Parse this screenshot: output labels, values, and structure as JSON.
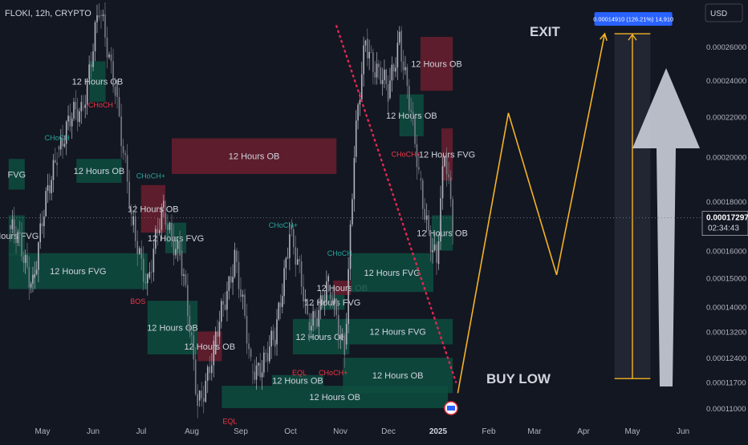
{
  "symbol_header": "FLOKI, 12h, CRYPTO",
  "currency": "USD",
  "colors": {
    "background": "#131722",
    "bull_zone": "#0e4d40",
    "bear_zone": "#6b1f2e",
    "candle_up": "#b2b5be",
    "candle_down": "#787b86",
    "projection": "#f5b324",
    "arrow": "#c7cbd6",
    "trendline": "#e0284f",
    "label_green": "#26a69a",
    "label_red": "#f23645",
    "price_tag": "#2962ff"
  },
  "chart_data": {
    "type": "candlestick",
    "timeframe": "12h",
    "x_axis": [
      "May",
      "Jun",
      "Jul",
      "Aug",
      "Sep",
      "Oct",
      "Nov",
      "Dec",
      "2025",
      "Feb",
      "Mar",
      "Apr",
      "May",
      "Jun"
    ],
    "y_axis": [
      "0.00026000",
      "0.00024000",
      "0.00022000",
      "0.00020000",
      "0.00018000",
      "0.00016000",
      "0.00015000",
      "0.00014000",
      "0.00013200",
      "0.00012400",
      "0.00011700",
      "0.00011000"
    ],
    "y_scale": "log",
    "ylim": [
      0.000105,
      0.000285
    ],
    "current_price": "0.00017297",
    "countdown": "02:34:43",
    "measure_label": "0.00014910 (126.21%) 14,910",
    "zones": [
      {
        "label": "12 Hours OB",
        "kind": "bull",
        "date_start": "2024-05-30",
        "date_end": "2024-06-09",
        "price_high": 0.000251,
        "price_low": 0.000228
      },
      {
        "label": "12 Hours OB",
        "kind": "bull",
        "date_start": "2024-05-22",
        "date_end": "2024-06-19",
        "price_high": 0.000199,
        "price_low": 0.000188
      },
      {
        "label": "12 Hours OB",
        "kind": "bear",
        "date_start": "2024-07-20",
        "date_end": "2024-10-30",
        "price_high": 0.000209,
        "price_low": 0.000192
      },
      {
        "label": "12 Hours OB",
        "kind": "bear",
        "date_start": "2024-07-01",
        "date_end": "2024-07-16",
        "price_high": 0.000187,
        "price_low": 0.000167
      },
      {
        "label": "12 Hours FVG",
        "kind": "bull",
        "date_start": "2024-07-16",
        "date_end": "2024-07-29",
        "price_high": 0.000171,
        "price_low": 0.000159
      },
      {
        "label": "12 Hours FVG",
        "kind": "bull",
        "date_start": "2024-04-10",
        "date_end": "2024-07-05",
        "price_high": 0.000159,
        "price_low": 0.000146
      },
      {
        "label": "Hours FVG",
        "kind": "bull",
        "date_start": "2024-04-10",
        "date_end": "2024-04-20",
        "price_high": 0.000174,
        "price_low": 0.000158
      },
      {
        "label": "FVG",
        "kind": "bull",
        "date_start": "2024-04-10",
        "date_end": "2024-04-20",
        "price_high": 0.000199,
        "price_low": 0.000185
      },
      {
        "label": "12 Hours OB",
        "kind": "bull",
        "date_start": "2024-07-05",
        "date_end": "2024-08-05",
        "price_high": 0.000142,
        "price_low": 0.000125
      },
      {
        "label": "12 Hours OB",
        "kind": "bear",
        "date_start": "2024-08-05",
        "date_end": "2024-08-20",
        "price_high": 0.000132,
        "price_low": 0.000123
      },
      {
        "label": "12 Hours OB",
        "kind": "bull",
        "date_start": "2024-10-03",
        "date_end": "2024-11-07",
        "price_high": 0.000136,
        "price_low": 0.000125
      },
      {
        "label": "12 Hours OB",
        "kind": "bear",
        "date_start": "2024-10-28",
        "date_end": "2024-11-08",
        "price_high": 0.000149,
        "price_low": 0.000144
      },
      {
        "label": "12 Hours FVG",
        "kind": "bull",
        "date_start": "2024-10-20",
        "date_end": "2024-11-04",
        "price_high": 0.000144,
        "price_low": 0.000139
      },
      {
        "label": "12 Hours FVG",
        "kind": "bull",
        "date_start": "2024-11-08",
        "date_end": "2024-12-29",
        "price_high": 0.000159,
        "price_low": 0.000145
      },
      {
        "label": "12 Hours FVG",
        "kind": "bull",
        "date_start": "2024-11-03",
        "date_end": "2025-01-10",
        "price_high": 0.000136,
        "price_low": 0.000128
      },
      {
        "label": "12 Hours OB",
        "kind": "bull",
        "date_start": "2024-11-03",
        "date_end": "2025-01-10",
        "price_high": 0.000124,
        "price_low": 0.000114
      },
      {
        "label": "12 Hours OB",
        "kind": "bull",
        "date_start": "2024-08-20",
        "date_end": "2025-01-07",
        "price_high": 0.000116,
        "price_low": 0.00011
      },
      {
        "label": "12 Hours OB",
        "kind": "bull",
        "date_start": "2024-09-20",
        "date_end": "2024-10-22",
        "price_high": 0.000119,
        "price_low": 0.000116
      },
      {
        "label": "12 Hours OB",
        "kind": "bull",
        "date_start": "2024-12-08",
        "date_end": "2024-12-23",
        "price_high": 0.000232,
        "price_low": 0.00021
      },
      {
        "label": "12 Hours OB",
        "kind": "bear",
        "date_start": "2024-12-21",
        "date_end": "2025-01-10",
        "price_high": 0.000266,
        "price_low": 0.000234
      },
      {
        "label": "12 Hours FVG",
        "kind": "bear",
        "date_start": "2025-01-03",
        "date_end": "2025-01-10",
        "price_high": 0.000214,
        "price_low": 0.000189
      },
      {
        "label": "12 Hours OB",
        "kind": "bull",
        "date_start": "2024-12-28",
        "date_end": "2025-01-10",
        "price_high": 0.000174,
        "price_low": 0.00016
      }
    ],
    "structure_labels": [
      {
        "text": "CHoCH",
        "kind": "bear",
        "date": "2024-06-06",
        "price": 0.000225
      },
      {
        "text": "CHoCH",
        "kind": "bull",
        "date": "2024-05-10",
        "price": 0.000208
      },
      {
        "text": "CHoCH+",
        "kind": "bull",
        "date": "2024-07-07",
        "price": 0.00019
      },
      {
        "text": "CHoCH+",
        "kind": "bull",
        "date": "2024-09-27",
        "price": 0.000169
      },
      {
        "text": "CHoCH",
        "kind": "bull",
        "date": "2024-11-01",
        "price": 0.000158
      },
      {
        "text": "CHoCH+",
        "kind": "bear",
        "date": "2024-12-12",
        "price": 0.0002
      },
      {
        "text": "BOS",
        "kind": "bear",
        "date": "2024-06-29",
        "price": 0.000141
      },
      {
        "text": "EQL",
        "kind": "bear",
        "date": "2024-10-07",
        "price": 0.000119
      },
      {
        "text": "CHoCH+",
        "kind": "bear",
        "date": "2024-10-28",
        "price": 0.000119
      },
      {
        "text": "EQL",
        "kind": "bear",
        "date": "2024-08-25",
        "price": 0.000106
      }
    ],
    "trendline": {
      "from_date": "2024-10-30",
      "from_price": 0.000273,
      "to_date": "2025-01-12",
      "to_price": 0.000117
    },
    "projection_path": [
      {
        "date": "2025-01-13",
        "price": 0.000114
      },
      {
        "date": "2025-02-13",
        "price": 0.000222
      },
      {
        "date": "2025-03-15",
        "price": 0.000151
      },
      {
        "date": "2025-04-14",
        "price": 0.000268
      }
    ],
    "measure_range": {
      "date_start": "2025-04-20",
      "date_end": "2025-05-12",
      "price_high": 0.000268,
      "price_low": 0.000118
    },
    "annotations": [
      "EXIT",
      "BUY LOW"
    ]
  }
}
